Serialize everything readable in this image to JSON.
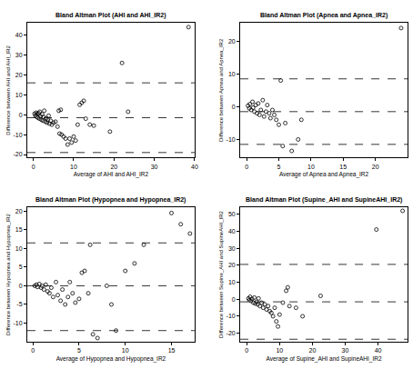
{
  "chart_data": [
    {
      "type": "scatter",
      "title": "Bland Altman Plot (AHI and AHI_IR2)",
      "x_label": "Average of AHI and AHI_IR2",
      "y_label": "Difference between AHI and AHI_IR2",
      "x": [
        0.3,
        0.5,
        0.7,
        0.8,
        1,
        1.1,
        1.3,
        1.5,
        1.6,
        1.8,
        2,
        2.2,
        2.4,
        2.5,
        2.7,
        3,
        3.2,
        3.4,
        3.6,
        3.8,
        4,
        4.3,
        4.6,
        5,
        5.5,
        6,
        6.3,
        6.5,
        6.8,
        7,
        7.5,
        8,
        8.5,
        9,
        9.5,
        10,
        10.5,
        11,
        11.5,
        12,
        12.5,
        13,
        14,
        15,
        19,
        22,
        23.5,
        38.5
      ],
      "values": [
        0.5,
        -0.5,
        1,
        -1,
        0.3,
        -1.5,
        0.8,
        -2,
        1.5,
        -0.8,
        -2.5,
        0.2,
        -3,
        -1.2,
        2,
        -3.5,
        -1.8,
        -4,
        -2.5,
        -0.5,
        -4.5,
        -3,
        -5,
        -4,
        -3.5,
        -6,
        2,
        -9.5,
        2.5,
        -10,
        -11,
        -12,
        -15,
        -12,
        -14,
        -11,
        -13,
        -5,
        5,
        6,
        7,
        -2,
        -5,
        -5.5,
        -8.5,
        26,
        1.5,
        44
      ],
      "color": "#000000",
      "marker": "circle-open",
      "hlines": [
        16,
        -1.5,
        -19
      ],
      "line_style": "dash",
      "xlim": [
        -1.5,
        40
      ],
      "ylim": [
        -21.5,
        46
      ],
      "xticks": [
        0,
        10,
        20,
        30,
        40
      ],
      "yticks": [
        -20,
        -10,
        0,
        10,
        20,
        30,
        40
      ]
    },
    {
      "type": "scatter",
      "title": "Bland Altman Plot (Apnea and Apnea_IR2)",
      "x_label": "Average of Apnea and Apnea_IR2",
      "y_label": "Difference between Apnea and Apnea_IR2",
      "x": [
        0.2,
        0.4,
        0.5,
        0.7,
        0.9,
        1,
        1.2,
        1.4,
        1.6,
        1.8,
        2,
        2.2,
        2.5,
        2.7,
        3,
        3.2,
        3.5,
        3.7,
        4,
        4.3,
        4.6,
        5,
        5.3,
        5.6,
        6,
        7,
        8,
        8.5,
        24
      ],
      "values": [
        0.3,
        -0.5,
        0.8,
        -1,
        1.5,
        -0.3,
        -1.5,
        0.5,
        -2,
        1,
        -2.5,
        -1,
        2,
        -3,
        -1.5,
        0.5,
        -2,
        -3.5,
        -1,
        -2.5,
        -4,
        -5.5,
        8,
        -12,
        -5,
        -13.5,
        -10,
        -4,
        24
      ],
      "color": "#000000",
      "marker": "circle-open",
      "hlines": [
        8.5,
        -1.5,
        -11.5
      ],
      "line_style": "dash",
      "xlim": [
        -1,
        25
      ],
      "ylim": [
        -15.5,
        25.5
      ],
      "xticks": [
        0,
        5,
        10,
        15,
        20
      ],
      "yticks": [
        -10,
        0,
        10,
        20
      ]
    },
    {
      "type": "scatter",
      "title": "Bland Altman Plot (Hypopnea and Hypopnea_IR2)",
      "x_label": "Average of Hypopnea and Hypopnea_IR2",
      "y_label": "Difference between Hypopnea and Hypopnea_IR2",
      "x": [
        0.2,
        0.4,
        0.5,
        0.7,
        0.9,
        1,
        1.2,
        1.4,
        1.6,
        1.8,
        2,
        2.2,
        2.5,
        2.7,
        3,
        3.2,
        3.5,
        3.8,
        4,
        4.3,
        4.6,
        5,
        5.3,
        5.6,
        6,
        6.2,
        6.5,
        7,
        8,
        8.5,
        9,
        10,
        11,
        12,
        15,
        16,
        17
      ],
      "values": [
        0,
        0.3,
        -0.3,
        0.5,
        -0.5,
        0,
        -1,
        0.3,
        -1.5,
        -2,
        -0.5,
        -3,
        1,
        -2.5,
        -4,
        -1,
        -5,
        -3,
        1,
        -2,
        -4.5,
        -3.5,
        3.5,
        4,
        -2,
        11,
        -13,
        -14,
        0,
        -5,
        -12,
        4,
        6,
        11,
        19.5,
        16.5,
        14
      ],
      "color": "#000000",
      "marker": "circle-open",
      "hlines": [
        11.5,
        0,
        -12
      ],
      "line_style": "dash",
      "xlim": [
        -0.6,
        17.5
      ],
      "ylim": [
        -15,
        21
      ],
      "xticks": [
        0,
        5,
        10,
        15
      ],
      "yticks": [
        -10,
        -5,
        0,
        5,
        10,
        15,
        20
      ]
    },
    {
      "type": "scatter",
      "title": "Bland Altman Plot (Supine_AHI and SupineAHI_IR2)",
      "x_label": "Average of Supine_AHI and SupineAHI_IR2",
      "y_label": "Difference between Supine_AHI and SupineAHI_IR2",
      "x": [
        0.5,
        0.8,
        1,
        1.3,
        1.6,
        2,
        2.3,
        2.6,
        3,
        3.3,
        3.6,
        4,
        4.5,
        5,
        5.5,
        6,
        6.5,
        7,
        7.5,
        8,
        8.5,
        9,
        9.5,
        10,
        11,
        12,
        12.5,
        13,
        15,
        17,
        22.5,
        39.5,
        47.5
      ],
      "values": [
        0.5,
        -0.5,
        1.5,
        -1,
        0.2,
        -2,
        1,
        -2.5,
        -1.5,
        -3,
        0.5,
        -4,
        -2,
        -5,
        -3,
        -6,
        -4,
        -7,
        -8,
        -10,
        -5,
        -13,
        -16,
        -9,
        -2,
        5,
        7,
        -4,
        -5,
        -10,
        2,
        41,
        52
      ],
      "color": "#000000",
      "marker": "circle-open",
      "hlines": [
        20.5,
        -1.5,
        -23.5
      ],
      "line_style": "dash",
      "xlim": [
        -2,
        49
      ],
      "ylim": [
        -25,
        54
      ],
      "xticks": [
        0,
        10,
        20,
        30,
        40
      ],
      "yticks": [
        -20,
        -10,
        0,
        10,
        20,
        30,
        40,
        50
      ]
    }
  ]
}
